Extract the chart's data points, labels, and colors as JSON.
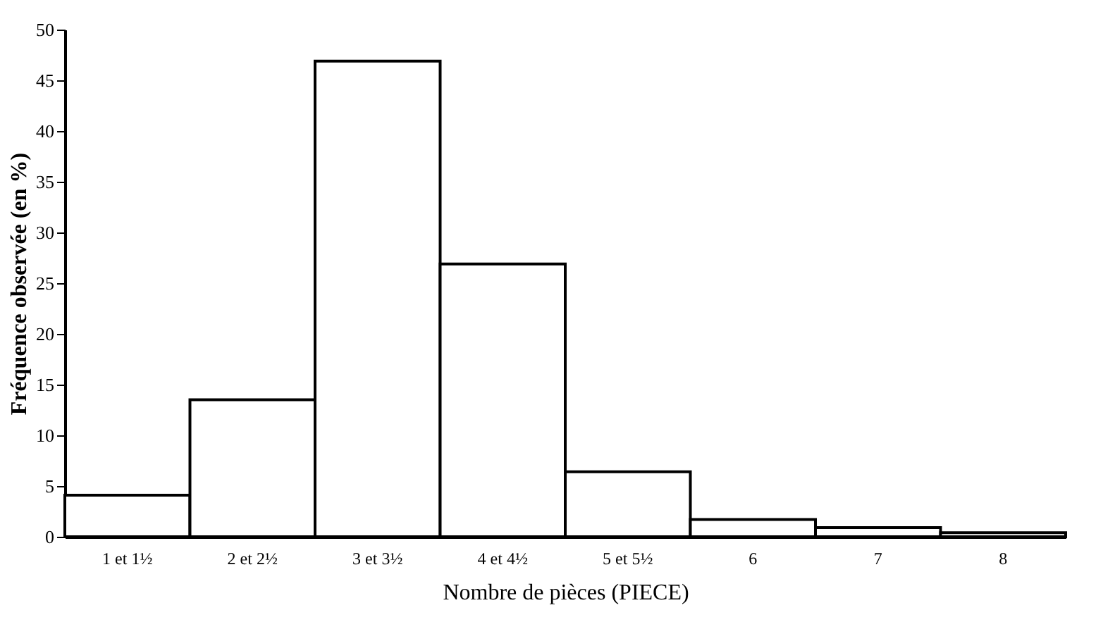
{
  "chart_data": {
    "type": "bar",
    "xlabel": "Nombre de pièces (PIECE)",
    "ylabel": "Fréquence observée (en %)",
    "categories": [
      "1 et 1½",
      "2 et 2½",
      "3 et 3½",
      "4 et 4½",
      "5 et 5½",
      "6",
      "7",
      "8"
    ],
    "values": [
      4.1,
      13.5,
      46.9,
      26.9,
      6.4,
      1.7,
      0.9,
      0.4
    ],
    "color": "#ffffff",
    "ylim": [
      0,
      50
    ],
    "yticks": [
      0,
      5,
      10,
      15,
      20,
      25,
      30,
      35,
      40,
      45,
      50
    ],
    "grid": false
  }
}
